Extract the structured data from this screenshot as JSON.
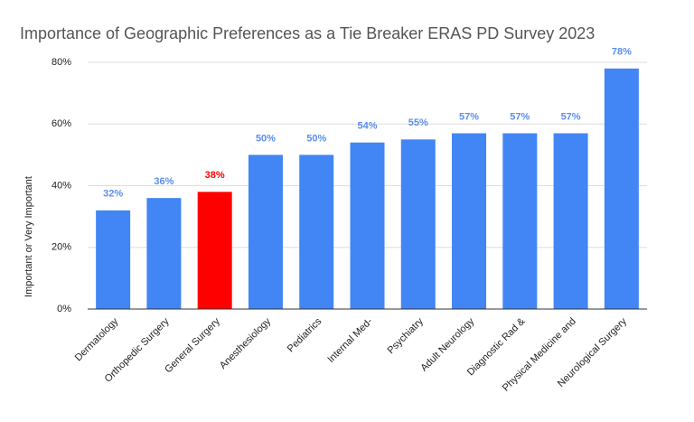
{
  "chart_data": {
    "type": "bar",
    "title": "Importance of Geographic Preferences as a Tie Breaker ERAS PD Survey 2023",
    "y_label": "Important or Very Important",
    "categories": [
      "Dermatology",
      "Orthopedic Surgery",
      "General Surgery",
      "Anesthesiology",
      "Pediatrics",
      "Internal Med-",
      "Psychiatry",
      "Adult Neurology",
      "Diagnostic Rad &",
      "Physical Medicine and",
      "Neurological Surgery"
    ],
    "values": [
      32,
      36,
      38,
      50,
      50,
      54,
      55,
      57,
      57,
      57,
      78
    ],
    "value_labels": [
      "32%",
      "36%",
      "38%",
      "50%",
      "50%",
      "54%",
      "55%",
      "57%",
      "57%",
      "57%",
      "78%"
    ],
    "colors": [
      "#4285f4",
      "#4285f4",
      "#ff0000",
      "#4285f4",
      "#4285f4",
      "#4285f4",
      "#4285f4",
      "#4285f4",
      "#4285f4",
      "#4285f4",
      "#4285f4"
    ],
    "ylim": [
      0,
      80
    ],
    "yticks": [
      {
        "value": 0,
        "label": "0%"
      },
      {
        "value": 20,
        "label": "20%"
      },
      {
        "value": 40,
        "label": "40%"
      },
      {
        "value": 60,
        "label": "60%"
      },
      {
        "value": 80,
        "label": "80%"
      }
    ],
    "grid": true
  }
}
